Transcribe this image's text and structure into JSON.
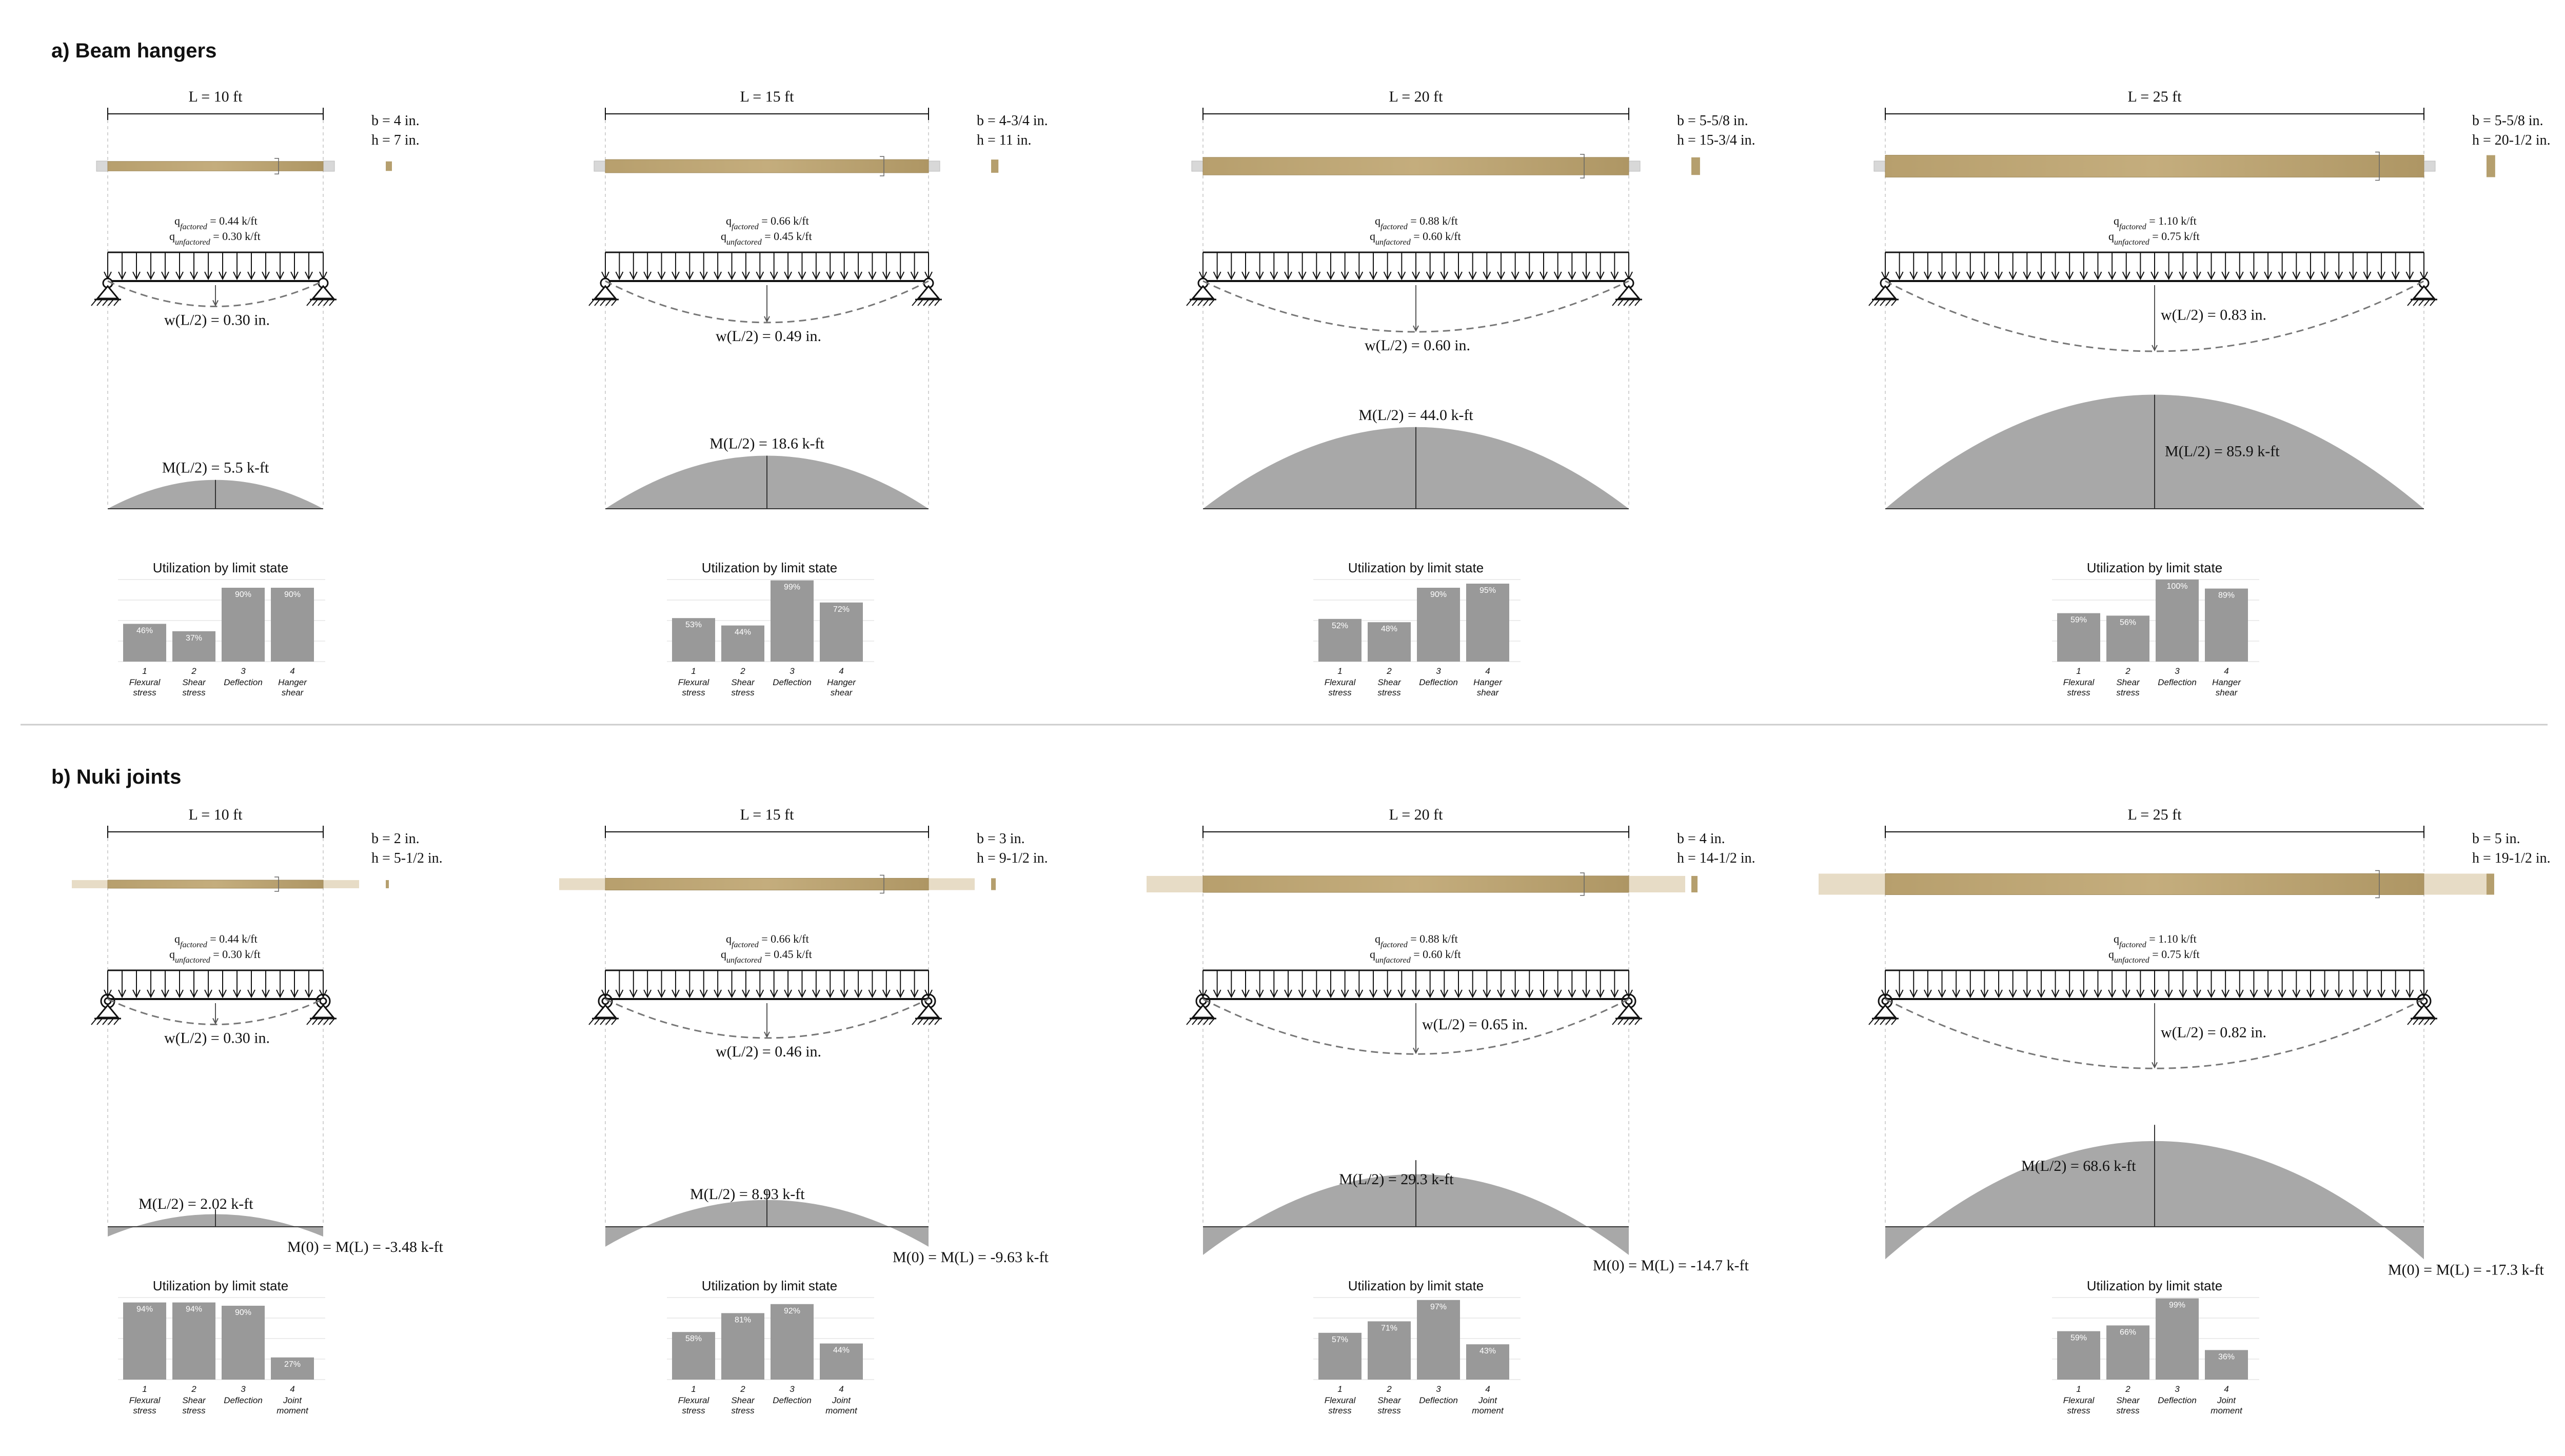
{
  "sections": [
    {
      "title": "a) Beam hangers",
      "support": "hanger",
      "panels": [
        {
          "span": "L = 10 ft",
          "L_ft": 10,
          "b": "b = 4 in.",
          "h": "h = 7 in.",
          "b_in": 4,
          "h_in": 7,
          "q_factored": "= 0.44 k/ft",
          "q_unfactored": "= 0.30 k/ft",
          "deflection": "w(L/2) = 0.30 in.",
          "deflection_in": 0.3,
          "moment_mid": "M(L/2) = 5.5 k-ft",
          "moment_mid_kft": 5.5,
          "util_title": "Utilization by limit state",
          "utilization": [
            {
              "num": "1",
              "name": "Flexural stress",
              "value": 46,
              "label": "46%"
            },
            {
              "num": "2",
              "name": "Shear stress",
              "value": 37,
              "label": "37%"
            },
            {
              "num": "3",
              "name": "Deflection",
              "value": 90,
              "label": "90%"
            },
            {
              "num": "4",
              "name": "Hanger shear",
              "value": 90,
              "label": "90%"
            }
          ]
        },
        {
          "span": "L = 15 ft",
          "L_ft": 15,
          "b": "b = 4-3/4 in.",
          "h": "h = 11 in.",
          "b_in": 4.75,
          "h_in": 11,
          "q_factored": "= 0.66 k/ft",
          "q_unfactored": "= 0.45 k/ft",
          "deflection": "w(L/2) = 0.49 in.",
          "deflection_in": 0.49,
          "moment_mid": "M(L/2) = 18.6 k-ft",
          "moment_mid_kft": 18.6,
          "util_title": "Utilization by limit state",
          "utilization": [
            {
              "num": "1",
              "name": "Flexural stress",
              "value": 53,
              "label": "53%"
            },
            {
              "num": "2",
              "name": "Shear stress",
              "value": 44,
              "label": "44%"
            },
            {
              "num": "3",
              "name": "Deflection",
              "value": 99,
              "label": "99%"
            },
            {
              "num": "4",
              "name": "Hanger shear",
              "value": 72,
              "label": "72%"
            }
          ]
        },
        {
          "span": "L = 20 ft",
          "L_ft": 20,
          "b": "b = 5-5/8 in.",
          "h": "h = 15-3/4 in.",
          "b_in": 5.625,
          "h_in": 15.75,
          "q_factored": "= 0.88 k/ft",
          "q_unfactored": "= 0.60 k/ft",
          "deflection": "w(L/2) = 0.60 in.",
          "deflection_in": 0.6,
          "moment_mid": "M(L/2) = 44.0 k-ft",
          "moment_mid_kft": 44.0,
          "util_title": "Utilization by limit state",
          "utilization": [
            {
              "num": "1",
              "name": "Flexural stress",
              "value": 52,
              "label": "52%"
            },
            {
              "num": "2",
              "name": "Shear stress",
              "value": 48,
              "label": "48%"
            },
            {
              "num": "3",
              "name": "Deflection",
              "value": 90,
              "label": "90%"
            },
            {
              "num": "4",
              "name": "Hanger shear",
              "value": 95,
              "label": "95%"
            }
          ]
        },
        {
          "span": "L = 25 ft",
          "L_ft": 25,
          "b": "b = 5-5/8 in.",
          "h": "h = 20-1/2 in.",
          "b_in": 5.625,
          "h_in": 20.5,
          "q_factored": "= 1.10 k/ft",
          "q_unfactored": "= 0.75 k/ft",
          "deflection": "w(L/2) = 0.83 in.",
          "deflection_in": 0.83,
          "moment_mid": "M(L/2) = 85.9 k-ft",
          "moment_mid_kft": 85.9,
          "util_title": "Utilization by limit state",
          "utilization": [
            {
              "num": "1",
              "name": "Flexural stress",
              "value": 59,
              "label": "59%"
            },
            {
              "num": "2",
              "name": "Shear stress",
              "value": 56,
              "label": "56%"
            },
            {
              "num": "3",
              "name": "Deflection",
              "value": 100,
              "label": "100%"
            },
            {
              "num": "4",
              "name": "Hanger shear",
              "value": 89,
              "label": "89%"
            }
          ]
        }
      ]
    },
    {
      "title": "b) Nuki joints",
      "support": "nuki",
      "panels": [
        {
          "span": "L = 10 ft",
          "L_ft": 10,
          "b": "b = 2 in.",
          "h": "h = 5-1/2 in.",
          "b_in": 2,
          "h_in": 5.5,
          "q_factored": "= 0.44 k/ft",
          "q_unfactored": "= 0.30 k/ft",
          "deflection": "w(L/2) = 0.30 in.",
          "deflection_in": 0.3,
          "moment_mid": "M(L/2) = 2.02 k-ft",
          "moment_mid_kft": 2.02,
          "moment_end": "M(0) = M(L) = -3.48 k-ft",
          "moment_end_kft": -3.48,
          "util_title": "Utilization by limit state",
          "utilization": [
            {
              "num": "1",
              "name": "Flexural stress",
              "value": 94,
              "label": "94%"
            },
            {
              "num": "2",
              "name": "Shear stress",
              "value": 94,
              "label": "94%"
            },
            {
              "num": "3",
              "name": "Deflection",
              "value": 90,
              "label": "90%"
            },
            {
              "num": "4",
              "name": "Joint moment",
              "value": 27,
              "label": "27%"
            }
          ]
        },
        {
          "span": "L = 15 ft",
          "L_ft": 15,
          "b": "b = 3 in.",
          "h": "h = 9-1/2 in.",
          "b_in": 3,
          "h_in": 9.5,
          "q_factored": "= 0.66 k/ft",
          "q_unfactored": "= 0.45 k/ft",
          "deflection": "w(L/2) = 0.46 in.",
          "deflection_in": 0.46,
          "moment_mid": "M(L/2) = 8.93 k-ft",
          "moment_mid_kft": 8.93,
          "moment_end": "M(0) = M(L) = -9.63 k-ft",
          "moment_end_kft": -9.63,
          "util_title": "Utilization by limit state",
          "utilization": [
            {
              "num": "1",
              "name": "Flexural stress",
              "value": 58,
              "label": "58%"
            },
            {
              "num": "2",
              "name": "Shear stress",
              "value": 81,
              "label": "81%"
            },
            {
              "num": "3",
              "name": "Deflection",
              "value": 92,
              "label": "92%"
            },
            {
              "num": "4",
              "name": "Joint moment",
              "value": 44,
              "label": "44%"
            }
          ]
        },
        {
          "span": "L = 20 ft",
          "L_ft": 20,
          "b": "b = 4 in.",
          "h": "h = 14-1/2 in.",
          "b_in": 4,
          "h_in": 14.5,
          "q_factored": "= 0.88 k/ft",
          "q_unfactored": "= 0.60 k/ft",
          "deflection": "w(L/2) = 0.65 in.",
          "deflection_in": 0.65,
          "moment_mid": "M(L/2) = 29.3 k-ft",
          "moment_mid_kft": 29.3,
          "moment_end": "M(0) = M(L) = -14.7 k-ft",
          "moment_end_kft": -14.7,
          "util_title": "Utilization by limit state",
          "utilization": [
            {
              "num": "1",
              "name": "Flexural stress",
              "value": 57,
              "label": "57%"
            },
            {
              "num": "2",
              "name": "Shear stress",
              "value": 71,
              "label": "71%"
            },
            {
              "num": "3",
              "name": "Deflection",
              "value": 97,
              "label": "97%"
            },
            {
              "num": "4",
              "name": "Joint moment",
              "value": 43,
              "label": "43%"
            }
          ]
        },
        {
          "span": "L = 25 ft",
          "L_ft": 25,
          "b": "b = 5 in.",
          "h": "h = 19-1/2 in.",
          "b_in": 5,
          "h_in": 19.5,
          "q_factored": "= 1.10 k/ft",
          "q_unfactored": "= 0.75 k/ft",
          "deflection": "w(L/2) = 0.82 in.",
          "deflection_in": 0.82,
          "moment_mid": "M(L/2) = 68.6 k-ft",
          "moment_mid_kft": 68.6,
          "moment_end": "M(0) = M(L) = -17.3 k-ft",
          "moment_end_kft": -17.3,
          "util_title": "Utilization by limit state",
          "utilization": [
            {
              "num": "1",
              "name": "Flexural stress",
              "value": 59,
              "label": "59%"
            },
            {
              "num": "2",
              "name": "Shear stress",
              "value": 66,
              "label": "66%"
            },
            {
              "num": "3",
              "name": "Deflection",
              "value": 99,
              "label": "99%"
            },
            {
              "num": "4",
              "name": "Joint moment",
              "value": 36,
              "label": "36%"
            }
          ]
        }
      ]
    }
  ],
  "colors": {
    "beam_wood": "#b59f6e",
    "beam_overhang": "#e7dcc6",
    "moment_fill": "#a8a8a8",
    "bar_fill": "#999999",
    "dash": "#777777",
    "divider": "#cccccc"
  }
}
